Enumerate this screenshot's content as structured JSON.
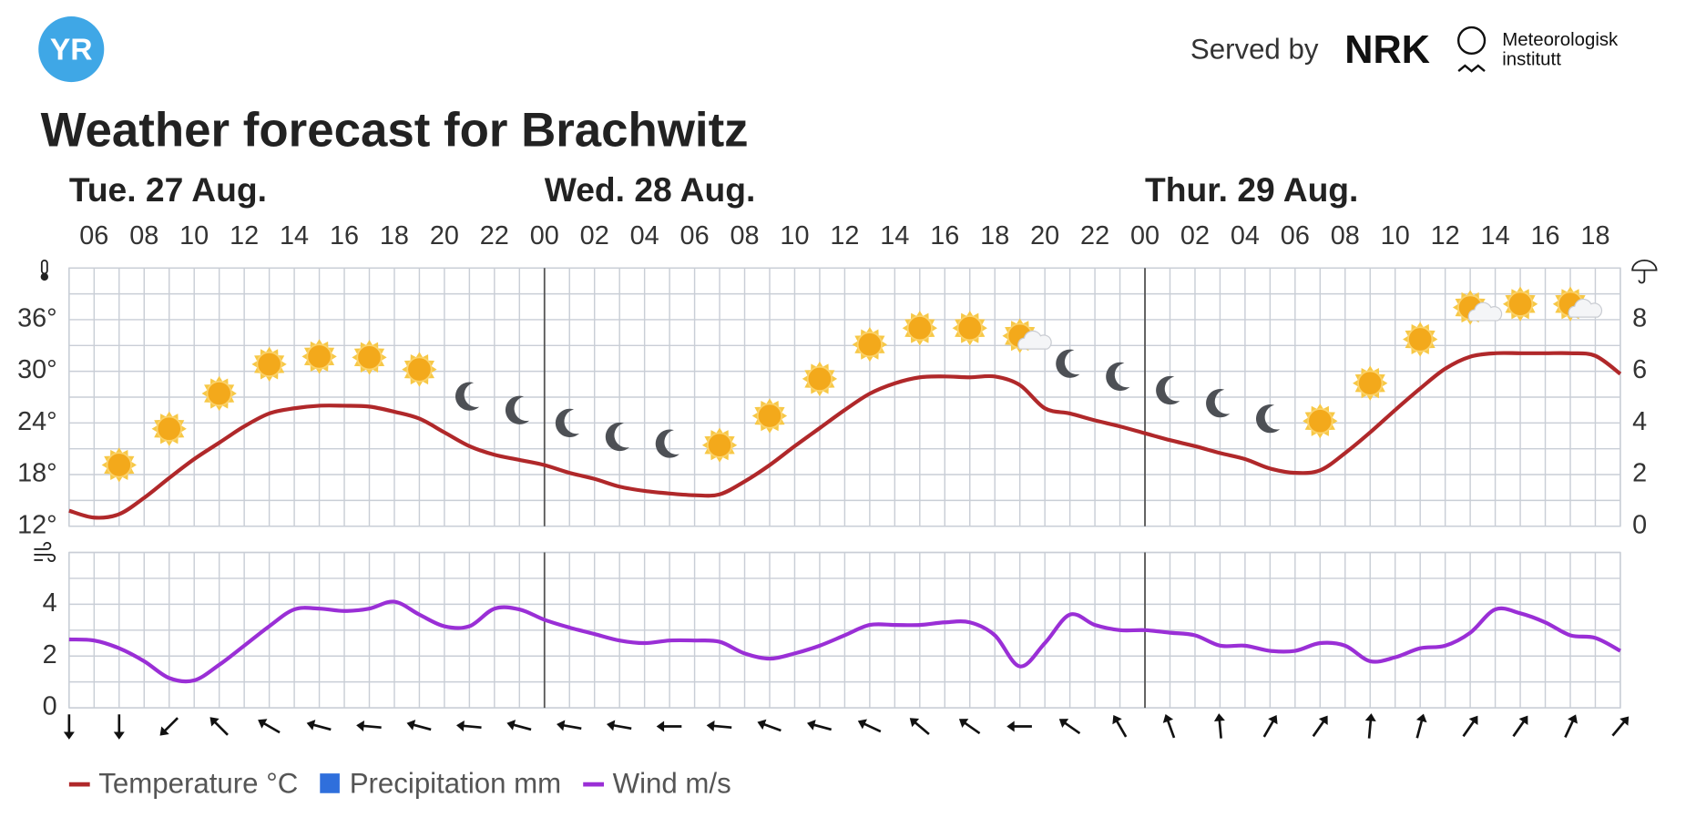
{
  "logo": "YR",
  "served_by": "Served by",
  "nrk": "NRK",
  "met_line1": "Meteorologisk",
  "met_line2": "institutt",
  "chart_data": {
    "type": "line",
    "title": "Weather forecast for Brachwitz",
    "days": [
      {
        "label": "Tue. 27 Aug.",
        "start": 0
      },
      {
        "label": "Wed. 28 Aug.",
        "start": 19
      },
      {
        "label": "Thur. 29 Aug.",
        "start": 43
      }
    ],
    "x": [
      null,
      "06",
      null,
      "08",
      null,
      "10",
      null,
      "12",
      null,
      "14",
      null,
      "16",
      null,
      "18",
      null,
      "20",
      null,
      "22",
      null,
      "00",
      null,
      "02",
      null,
      "04",
      null,
      "06",
      null,
      "08",
      null,
      "10",
      null,
      "12",
      null,
      "14",
      null,
      "16",
      null,
      "18",
      null,
      "20",
      null,
      "22",
      null,
      "00",
      null,
      "02",
      null,
      "04",
      null,
      "06",
      null,
      "08",
      null,
      "10",
      null,
      "12",
      null,
      "14",
      null,
      "16",
      null,
      "18",
      null
    ],
    "ylim": [
      12,
      42
    ],
    "yticks": [
      {
        "value": 12,
        "label": "12°"
      },
      {
        "value": 18,
        "label": "18°"
      },
      {
        "value": 24,
        "label": "24°"
      },
      {
        "value": 30,
        "label": "30°"
      },
      {
        "value": 36,
        "label": "36°"
      }
    ],
    "y2lim": [
      0,
      10
    ],
    "y2ticks": [
      0,
      2,
      4,
      6,
      8
    ],
    "grid": true,
    "symbols": [
      null,
      null,
      "clearsky_day",
      null,
      "clearsky_day",
      null,
      "clearsky_day",
      null,
      "clearsky_day",
      null,
      "clearsky_day",
      null,
      "clearsky_day",
      null,
      "clearsky_day",
      null,
      "clearsky_night",
      null,
      "clearsky_night",
      null,
      "clearsky_night",
      null,
      "clearsky_night",
      null,
      "clearsky_night",
      null,
      "clearsky_day",
      null,
      "clearsky_day",
      null,
      "clearsky_day",
      null,
      "clearsky_day",
      null,
      "clearsky_day",
      null,
      "clearsky_day",
      null,
      "fair_day",
      null,
      "clearsky_night",
      null,
      "clearsky_night",
      null,
      "clearsky_night",
      null,
      "clearsky_night",
      null,
      "clearsky_night",
      null,
      "clearsky_day",
      null,
      "clearsky_day",
      null,
      "clearsky_day",
      null,
      "fair_day",
      null,
      "clearsky_day",
      null,
      "fair_day",
      null,
      null
    ],
    "series": [
      {
        "name": "Temperature °C",
        "color": "#b0282a",
        "values": [
          13.8,
          13,
          13.4,
          15.3,
          17.6,
          19.8,
          21.7,
          23.6,
          25.1,
          25.7,
          26,
          26,
          25.9,
          25.3,
          24.5,
          22.9,
          21.3,
          20.3,
          19.7,
          19.1,
          18.2,
          17.5,
          16.6,
          16.1,
          15.8,
          15.6,
          15.7,
          17.2,
          19.1,
          21.3,
          23.4,
          25.5,
          27.4,
          28.6,
          29.3,
          29.4,
          29.3,
          29.4,
          28.4,
          25.7,
          25.1,
          24.3,
          23.6,
          22.8,
          22,
          21.3,
          20.5,
          19.8,
          18.7,
          18.2,
          18.5,
          20.5,
          22.9,
          25.5,
          28,
          30.3,
          31.7,
          32.1,
          32.1,
          32.1,
          32.1,
          31.8,
          29.7
        ]
      },
      {
        "name": "Precipitation mm",
        "color": "#2f6fdc",
        "axis": "y2",
        "values": [
          0,
          0,
          0,
          0,
          0,
          0,
          0,
          0,
          0,
          0,
          0,
          0,
          0,
          0,
          0,
          0,
          0,
          0,
          0,
          0,
          0,
          0,
          0,
          0,
          0,
          0,
          0,
          0,
          0,
          0,
          0,
          0,
          0,
          0,
          0,
          0,
          0,
          0,
          0,
          0,
          0,
          0,
          0,
          0,
          0,
          0,
          0,
          0,
          0,
          0,
          0,
          0,
          0,
          0,
          0,
          0,
          0,
          0,
          0,
          0,
          0,
          0,
          0
        ]
      }
    ],
    "wind": {
      "ylim": [
        0,
        6
      ],
      "yticks": [
        0,
        2,
        4
      ],
      "series": [
        {
          "name": "Wind m/s",
          "color": "#9a2fd6",
          "values": [
            2.64,
            2.6,
            2.3,
            1.8,
            1.15,
            1.06,
            1.66,
            2.4,
            3.15,
            3.8,
            3.83,
            3.74,
            3.83,
            4.1,
            3.6,
            3.15,
            3.15,
            3.83,
            3.8,
            3.4,
            3.1,
            2.85,
            2.6,
            2.5,
            2.6,
            2.6,
            2.55,
            2.1,
            1.9,
            2.1,
            2.4,
            2.8,
            3.2,
            3.2,
            3.2,
            3.3,
            3.3,
            2.8,
            1.6,
            2.5,
            3.6,
            3.2,
            3,
            3,
            2.9,
            2.8,
            2.4,
            2.4,
            2.2,
            2.2,
            2.5,
            2.4,
            1.8,
            1.95,
            2.3,
            2.4,
            2.9,
            3.8,
            3.65,
            3.3,
            2.8,
            2.7,
            2.2
          ]
        }
      ],
      "direction": [
        180,
        null,
        180,
        null,
        225,
        null,
        315,
        null,
        300,
        null,
        285,
        null,
        275,
        null,
        285,
        null,
        275,
        null,
        285,
        null,
        280,
        null,
        280,
        null,
        270,
        null,
        275,
        null,
        290,
        null,
        285,
        null,
        295,
        null,
        310,
        null,
        305,
        null,
        270,
        null,
        305,
        null,
        330,
        null,
        340,
        null,
        355,
        null,
        30,
        null,
        35,
        null,
        5,
        null,
        15,
        null,
        35,
        null,
        35,
        null,
        25,
        null,
        40
      ]
    }
  }
}
